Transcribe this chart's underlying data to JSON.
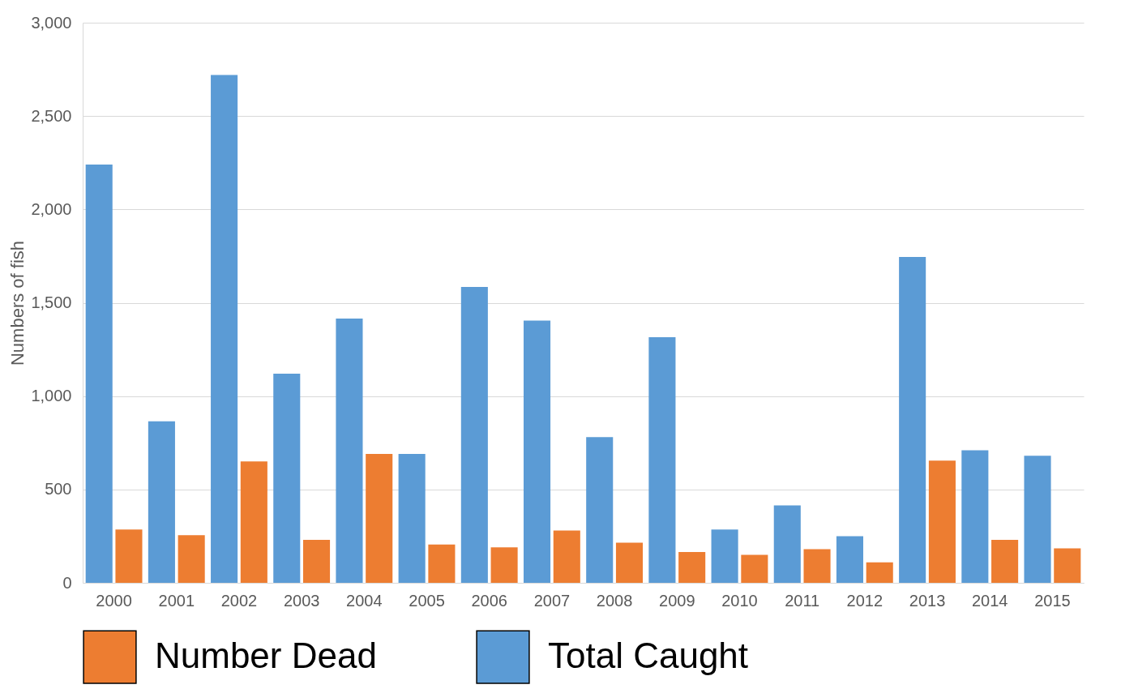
{
  "chart_data": {
    "type": "bar",
    "ylabel": "Numbers of fish",
    "categories": [
      "2000",
      "2001",
      "2002",
      "2003",
      "2004",
      "2005",
      "2006",
      "2007",
      "2008",
      "2009",
      "2010",
      "2011",
      "2012",
      "2013",
      "2014",
      "2015"
    ],
    "series": [
      {
        "name": "Number Dead",
        "color": "#ed7d31",
        "values": [
          285,
          255,
          650,
          230,
          690,
          205,
          190,
          280,
          215,
          165,
          150,
          180,
          110,
          655,
          230,
          185
        ]
      },
      {
        "name": "Total Caught",
        "color": "#5b9bd5",
        "values": [
          2240,
          865,
          2720,
          1120,
          1415,
          690,
          1585,
          1405,
          780,
          1315,
          285,
          415,
          250,
          1745,
          710,
          680
        ]
      }
    ],
    "ylim": [
      0,
      3000
    ],
    "yticks": [
      {
        "value": 0,
        "label": "0"
      },
      {
        "value": 500,
        "label": "500"
      },
      {
        "value": 1000,
        "label": "1,000"
      },
      {
        "value": 1500,
        "label": "1,500"
      },
      {
        "value": 2000,
        "label": "2,000"
      },
      {
        "value": 2500,
        "label": "2,500"
      },
      {
        "value": 3000,
        "label": "3,000"
      }
    ],
    "grid": "y",
    "legend": "bottom"
  }
}
